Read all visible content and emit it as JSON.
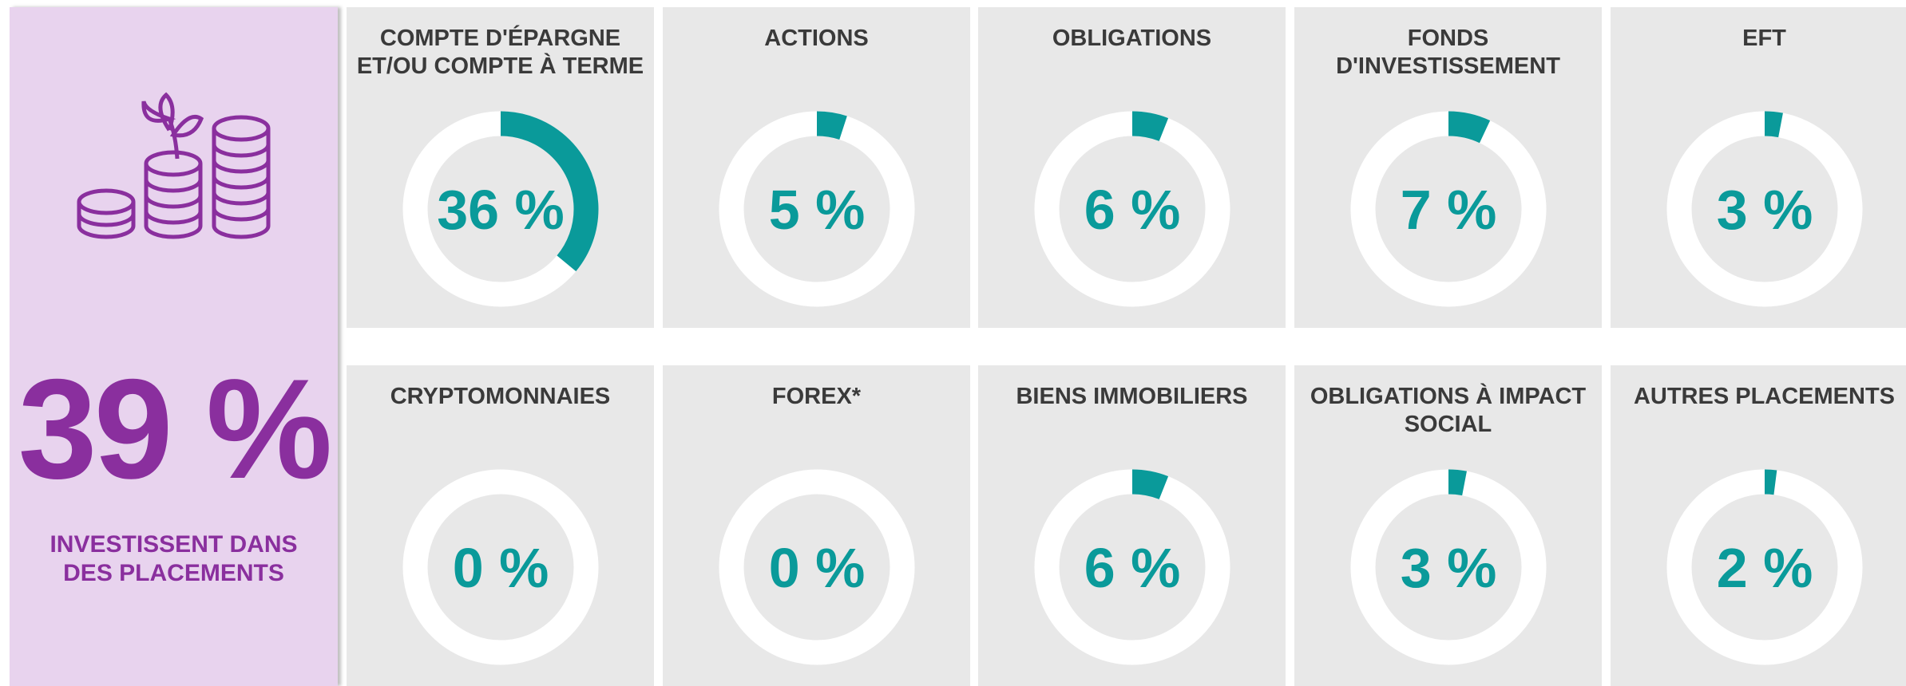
{
  "highlight": {
    "label": "39 %",
    "caption": "INVESTISSENT DANS DES PLACEMENTS"
  },
  "chart_data": {
    "type": "donut",
    "categories": [
      "COMPTE D'ÉPARGNE ET/OU COMPTE À TERME",
      "ACTIONS",
      "OBLIGATIONS",
      "FONDS D'INVESTISSEMENT",
      "EFT",
      "CRYPTOMONNAIES",
      "FOREX*",
      "BIENS IMMOBILIERS",
      "OBLIGATIONS À IMPACT SOCIAL",
      "AUTRES PLACEMENTS"
    ],
    "values": [
      36,
      5,
      6,
      7,
      3,
      0,
      0,
      6,
      3,
      2
    ],
    "value_labels": [
      "36 %",
      "5 %",
      "6 %",
      "7 %",
      "3 %",
      "0 %",
      "0 %",
      "6 %",
      "3 %",
      "2 %"
    ],
    "color": "#0a9a9a"
  }
}
